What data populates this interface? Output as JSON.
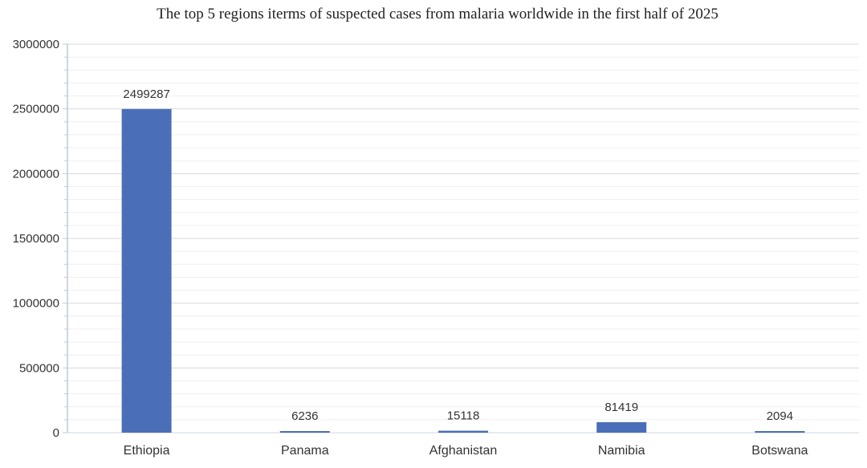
{
  "chart_data": {
    "type": "bar",
    "title": "The top 5 regions iterms of suspected cases from malaria worldwide in the first half of 2025",
    "xlabel": "",
    "ylabel": "",
    "categories": [
      "Ethiopia",
      "Panama",
      "Afghanistan",
      "Namibia",
      "Botswana"
    ],
    "values": [
      2499287,
      6236,
      15118,
      81419,
      2094
    ],
    "data_labels": [
      "2499287",
      "6236",
      "15118",
      "81419",
      "2094"
    ],
    "ylim": [
      0,
      3000000
    ],
    "yticks": [
      0,
      500000,
      1000000,
      1500000,
      2000000,
      2500000,
      3000000
    ],
    "ytick_labels": [
      "0",
      "500000",
      "1000000",
      "1500000",
      "2000000",
      "2500000",
      "3000000"
    ],
    "grid": true,
    "legend": "none",
    "colors": {
      "bar": "#4a6fb8",
      "grid": "#e6e6e6",
      "axis": "#bfc9da"
    }
  }
}
